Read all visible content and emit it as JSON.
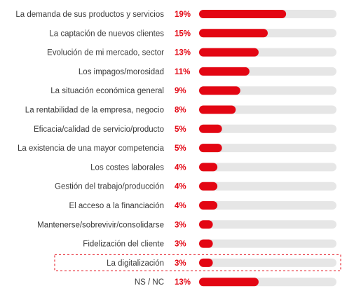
{
  "chart_data": {
    "type": "bar",
    "orientation": "horizontal",
    "categories": [
      "La demanda de sus productos y servicios",
      "La captación de nuevos clientes",
      "Evolución de mi mercado, sector",
      "Los impagos/morosidad",
      "La situación económica general",
      "La rentabilidad de la empresa, negocio",
      "Eficacia/calidad de servicio/producto",
      "La existencia de una mayor competencia",
      "Los costes laborales",
      "Gestión del trabajo/producción",
      "El acceso a la financiación",
      "Mantenerse/sobrevivir/consolidarse",
      "Fidelización del cliente",
      "La digitalización",
      "NS / NC"
    ],
    "values": [
      19,
      15,
      13,
      11,
      9,
      8,
      5,
      5,
      4,
      4,
      4,
      3,
      3,
      3,
      13
    ],
    "value_labels": [
      "19%",
      "15%",
      "13%",
      "11%",
      "9%",
      "8%",
      "5%",
      "5%",
      "4%",
      "4%",
      "4%",
      "3%",
      "3%",
      "3%",
      "13%"
    ],
    "xlim": [
      0,
      30
    ],
    "highlighted_category": "La digitalización",
    "title": "",
    "xlabel": "",
    "ylabel": "",
    "grid": false,
    "legend": "none",
    "colors": {
      "bar": "#e30613",
      "track": "#e6e6e6",
      "value_label": "#e30613",
      "category_label": "#3a3a3a",
      "highlight_border": "#e30613"
    }
  }
}
